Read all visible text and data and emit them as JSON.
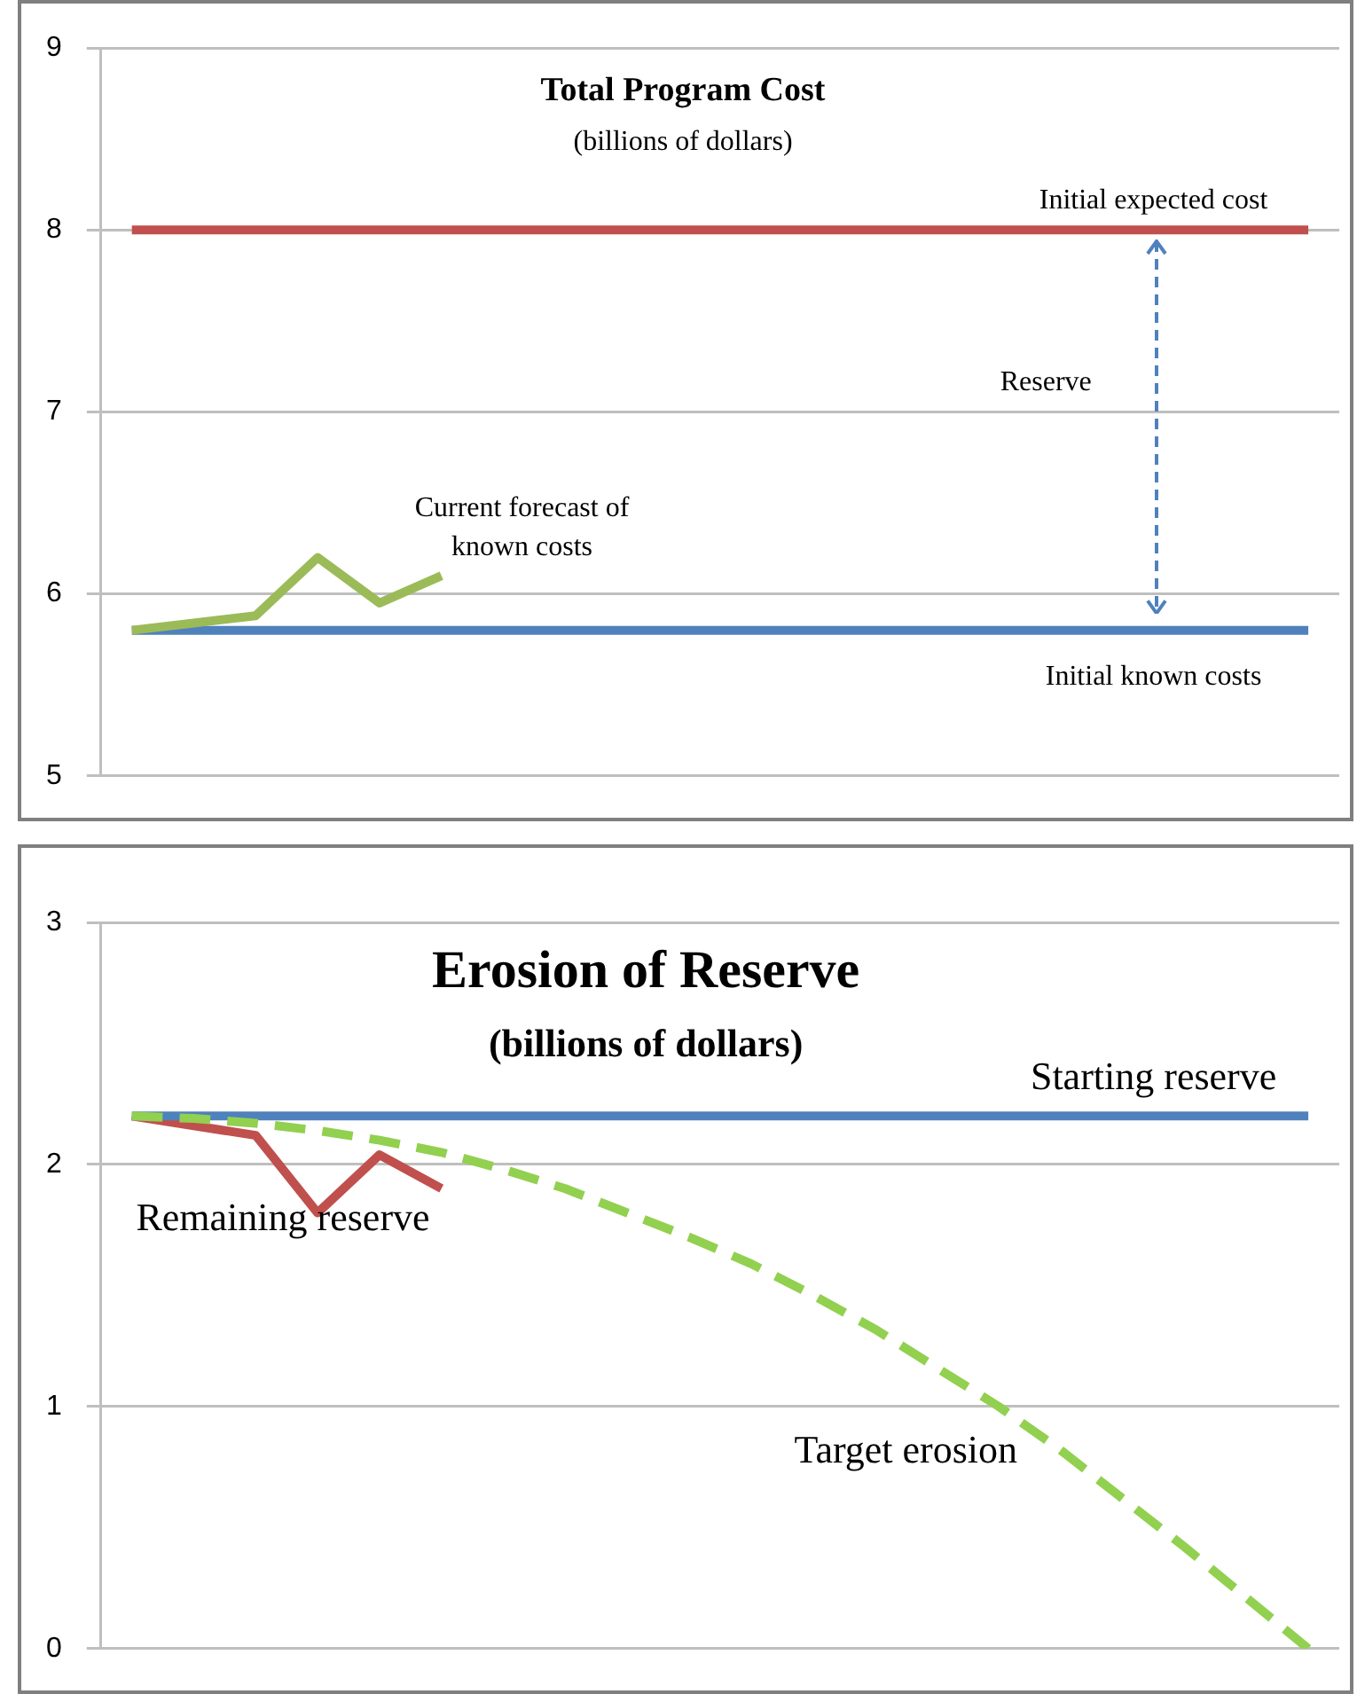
{
  "chart_data": [
    {
      "type": "line",
      "title": "Total Program Cost",
      "subtitle": "(billions of dollars)",
      "categories": [
        null,
        null,
        null,
        null,
        null,
        null,
        null,
        null,
        null,
        null,
        null,
        null,
        null,
        null,
        null,
        null,
        null,
        null,
        null,
        null
      ],
      "series": [
        {
          "name": "Current forecast of known costs",
          "color": "#9bbb59",
          "values": [
            5.8,
            5.84,
            5.88,
            6.2,
            5.95,
            6.1,
            null,
            null,
            null,
            null,
            null,
            null,
            null,
            null,
            null,
            null,
            null,
            null,
            null,
            null
          ]
        },
        {
          "name": "Initial expected cost",
          "color": "#c0504d",
          "values": [
            8,
            8,
            8,
            8,
            8,
            8,
            8,
            8,
            8,
            8,
            8,
            8,
            8,
            8,
            8,
            8,
            8,
            8,
            8,
            8
          ]
        },
        {
          "name": "Initial known costs",
          "color": "#4f81bd",
          "values": [
            5.8,
            5.8,
            5.8,
            5.8,
            5.8,
            5.8,
            5.8,
            5.8,
            5.8,
            5.8,
            5.8,
            5.8,
            5.8,
            5.8,
            5.8,
            5.8,
            5.8,
            5.8,
            5.8,
            5.8
          ]
        }
      ],
      "annotations": [
        "Reserve"
      ],
      "ylim": [
        5,
        9
      ],
      "yticks": [
        5,
        6,
        7,
        8,
        9
      ],
      "grid": "y",
      "legend": false,
      "marker": "none",
      "line_style": "solid",
      "tick_labels": "y"
    },
    {
      "type": "line",
      "title": "Erosion of Reserve",
      "subtitle": "(billions of dollars)",
      "categories": [
        null,
        null,
        null,
        null,
        null,
        null,
        null,
        null,
        null,
        null,
        null,
        null,
        null,
        null,
        null,
        null,
        null,
        null,
        null,
        null
      ],
      "series": [
        {
          "name": "Target erosion",
          "color": "#92d050",
          "line_style": "dashed",
          "values": [
            2.2,
            2.19,
            2.17,
            2.14,
            2.1,
            2.05,
            1.98,
            1.9,
            1.8,
            1.7,
            1.59,
            1.46,
            1.32,
            1.16,
            1.0,
            0.82,
            0.62,
            0.42,
            0.21,
            0
          ]
        },
        {
          "name": "Starting reserve",
          "color": "#4f81bd",
          "values": [
            2.2,
            2.2,
            2.2,
            2.2,
            2.2,
            2.2,
            2.2,
            2.2,
            2.2,
            2.2,
            2.2,
            2.2,
            2.2,
            2.2,
            2.2,
            2.2,
            2.2,
            2.2,
            2.2,
            2.2
          ]
        },
        {
          "name": "Remaining reserve",
          "color": "#c0504d",
          "values": [
            2.2,
            2.16,
            2.12,
            1.8,
            2.04,
            1.9,
            null,
            null,
            null,
            null,
            null,
            null,
            null,
            null,
            null,
            null,
            null,
            null,
            null,
            null
          ]
        }
      ],
      "ylim": [
        0,
        3
      ],
      "yticks": [
        0,
        1,
        2,
        3
      ],
      "grid": "y",
      "legend": false,
      "marker": "none",
      "line_style": "solid",
      "tick_labels": "y"
    }
  ]
}
